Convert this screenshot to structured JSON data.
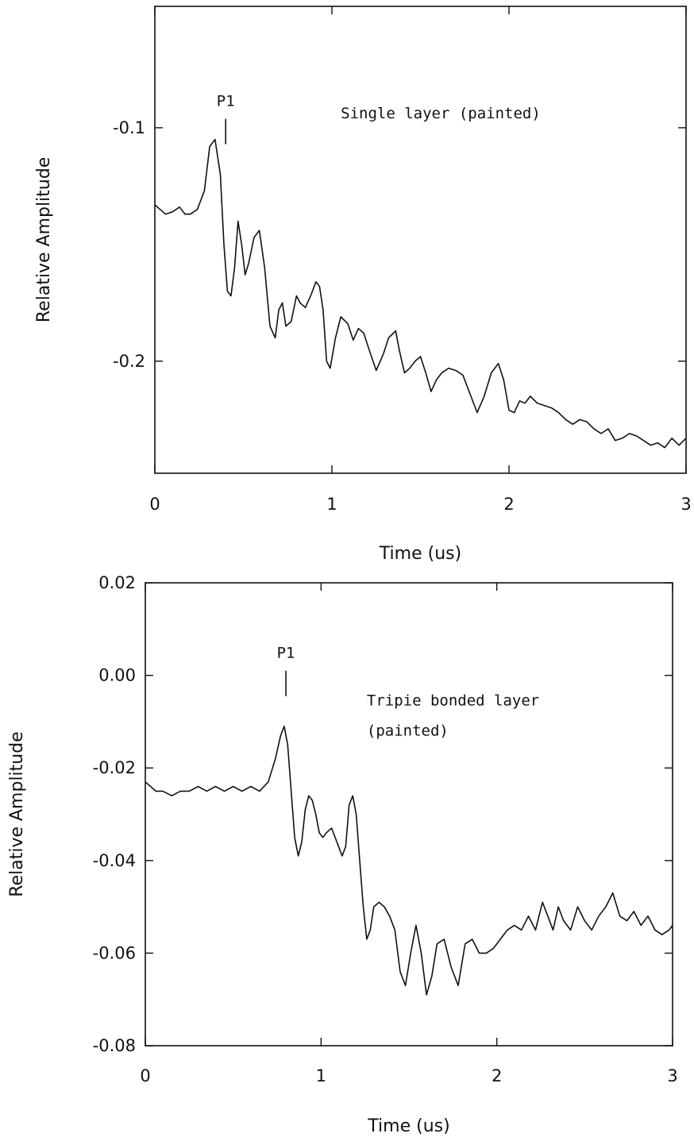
{
  "chart_data": [
    {
      "type": "line",
      "xlabel": "Time (us)",
      "ylabel": "Relative Amplitude",
      "xlim": [
        0,
        3
      ],
      "ylim": [
        -0.248,
        -0.048
      ],
      "xticks": [
        0,
        1,
        2,
        3
      ],
      "xtick_labels": [
        "0",
        "1",
        "2",
        "3"
      ],
      "yticks": [
        -0.1,
        -0.2
      ],
      "ytick_labels": [
        "-0.1",
        "-0.2"
      ],
      "grid": false,
      "annotations": [
        {
          "text": "P1",
          "x": 0.4,
          "kind": "peak-marker"
        },
        {
          "text": "Single layer (painted)",
          "kind": "label",
          "x": 1.05,
          "y": -0.096
        }
      ],
      "series": [
        {
          "x": [
            0.0,
            0.03,
            0.06,
            0.1,
            0.14,
            0.17,
            0.2,
            0.24,
            0.28,
            0.31,
            0.34,
            0.37,
            0.39,
            0.41,
            0.43,
            0.45,
            0.47,
            0.49,
            0.51,
            0.53,
            0.56,
            0.59,
            0.62,
            0.65,
            0.68,
            0.7,
            0.72,
            0.74,
            0.77,
            0.8,
            0.82,
            0.85,
            0.88,
            0.91,
            0.93,
            0.95,
            0.97,
            0.99,
            1.02,
            1.05,
            1.09,
            1.12,
            1.15,
            1.18,
            1.21,
            1.25,
            1.29,
            1.32,
            1.36,
            1.38,
            1.41,
            1.44,
            1.47,
            1.5,
            1.53,
            1.56,
            1.59,
            1.62,
            1.66,
            1.7,
            1.74,
            1.78,
            1.82,
            1.86,
            1.9,
            1.94,
            1.97,
            2.0,
            2.03,
            2.06,
            2.09,
            2.12,
            2.16,
            2.2,
            2.24,
            2.28,
            2.32,
            2.36,
            2.4,
            2.44,
            2.48,
            2.52,
            2.56,
            2.6,
            2.64,
            2.68,
            2.72,
            2.76,
            2.8,
            2.84,
            2.88,
            2.92,
            2.96,
            3.0
          ],
          "values": [
            -0.133,
            -0.135,
            -0.137,
            -0.136,
            -0.134,
            -0.137,
            -0.137,
            -0.135,
            -0.127,
            -0.108,
            -0.105,
            -0.12,
            -0.15,
            -0.17,
            -0.172,
            -0.16,
            -0.14,
            -0.15,
            -0.163,
            -0.158,
            -0.147,
            -0.144,
            -0.16,
            -0.185,
            -0.19,
            -0.178,
            -0.175,
            -0.185,
            -0.183,
            -0.172,
            -0.175,
            -0.177,
            -0.172,
            -0.166,
            -0.168,
            -0.178,
            -0.2,
            -0.203,
            -0.19,
            -0.181,
            -0.184,
            -0.191,
            -0.186,
            -0.188,
            -0.195,
            -0.204,
            -0.197,
            -0.19,
            -0.187,
            -0.195,
            -0.205,
            -0.203,
            -0.2,
            -0.198,
            -0.205,
            -0.213,
            -0.208,
            -0.205,
            -0.203,
            -0.204,
            -0.206,
            -0.214,
            -0.222,
            -0.215,
            -0.205,
            -0.201,
            -0.208,
            -0.221,
            -0.222,
            -0.217,
            -0.218,
            -0.215,
            -0.218,
            -0.219,
            -0.22,
            -0.222,
            -0.225,
            -0.227,
            -0.225,
            -0.226,
            -0.229,
            -0.231,
            -0.229,
            -0.234,
            -0.233,
            -0.231,
            -0.232,
            -0.234,
            -0.236,
            -0.235,
            -0.237,
            -0.233,
            -0.236,
            -0.233
          ]
        }
      ]
    },
    {
      "type": "line",
      "xlabel": "Time (us)",
      "ylabel": "Relative Amplitude",
      "xlim": [
        0,
        3
      ],
      "ylim": [
        -0.08,
        0.02
      ],
      "xticks": [
        0,
        1,
        2,
        3
      ],
      "xtick_labels": [
        "0",
        "1",
        "2",
        "3"
      ],
      "yticks": [
        0.02,
        0.0,
        -0.02,
        -0.04,
        -0.06,
        -0.08
      ],
      "ytick_labels": [
        "0.02",
        "0.00",
        "-0.02",
        "-0.04",
        "-0.06",
        "-0.08"
      ],
      "grid": false,
      "annotations": [
        {
          "text": "P1",
          "x": 0.8,
          "kind": "peak-marker"
        },
        {
          "text": "Tripie bonded layer",
          "kind": "label",
          "x": 1.26,
          "y": -0.0065
        },
        {
          "text": "(painted)",
          "kind": "label",
          "x": 1.26,
          "y": -0.013
        }
      ],
      "series": [
        {
          "x": [
            0.0,
            0.03,
            0.06,
            0.1,
            0.15,
            0.2,
            0.25,
            0.3,
            0.35,
            0.4,
            0.45,
            0.5,
            0.55,
            0.6,
            0.65,
            0.7,
            0.74,
            0.77,
            0.79,
            0.81,
            0.83,
            0.85,
            0.87,
            0.89,
            0.91,
            0.93,
            0.95,
            0.97,
            0.99,
            1.01,
            1.03,
            1.06,
            1.09,
            1.12,
            1.14,
            1.16,
            1.18,
            1.2,
            1.22,
            1.24,
            1.26,
            1.28,
            1.3,
            1.33,
            1.36,
            1.39,
            1.42,
            1.45,
            1.48,
            1.51,
            1.54,
            1.57,
            1.6,
            1.63,
            1.66,
            1.7,
            1.74,
            1.78,
            1.82,
            1.86,
            1.9,
            1.94,
            1.98,
            2.02,
            2.06,
            2.1,
            2.14,
            2.18,
            2.22,
            2.26,
            2.29,
            2.32,
            2.35,
            2.38,
            2.42,
            2.46,
            2.5,
            2.54,
            2.58,
            2.62,
            2.66,
            2.7,
            2.74,
            2.78,
            2.82,
            2.86,
            2.9,
            2.94,
            2.98,
            3.0
          ],
          "values": [
            -0.023,
            -0.024,
            -0.025,
            -0.025,
            -0.026,
            -0.025,
            -0.025,
            -0.024,
            -0.025,
            -0.024,
            -0.025,
            -0.024,
            -0.025,
            -0.024,
            -0.025,
            -0.023,
            -0.018,
            -0.013,
            -0.011,
            -0.015,
            -0.025,
            -0.035,
            -0.039,
            -0.036,
            -0.029,
            -0.026,
            -0.027,
            -0.03,
            -0.034,
            -0.035,
            -0.034,
            -0.033,
            -0.036,
            -0.039,
            -0.037,
            -0.028,
            -0.026,
            -0.03,
            -0.04,
            -0.05,
            -0.057,
            -0.055,
            -0.05,
            -0.049,
            -0.05,
            -0.052,
            -0.055,
            -0.064,
            -0.067,
            -0.06,
            -0.054,
            -0.06,
            -0.069,
            -0.065,
            -0.058,
            -0.057,
            -0.063,
            -0.067,
            -0.058,
            -0.057,
            -0.06,
            -0.06,
            -0.059,
            -0.057,
            -0.055,
            -0.054,
            -0.055,
            -0.052,
            -0.055,
            -0.049,
            -0.052,
            -0.055,
            -0.05,
            -0.053,
            -0.055,
            -0.05,
            -0.053,
            -0.055,
            -0.052,
            -0.05,
            -0.047,
            -0.052,
            -0.053,
            -0.051,
            -0.054,
            -0.052,
            -0.055,
            -0.056,
            -0.055,
            -0.054
          ]
        }
      ]
    }
  ]
}
